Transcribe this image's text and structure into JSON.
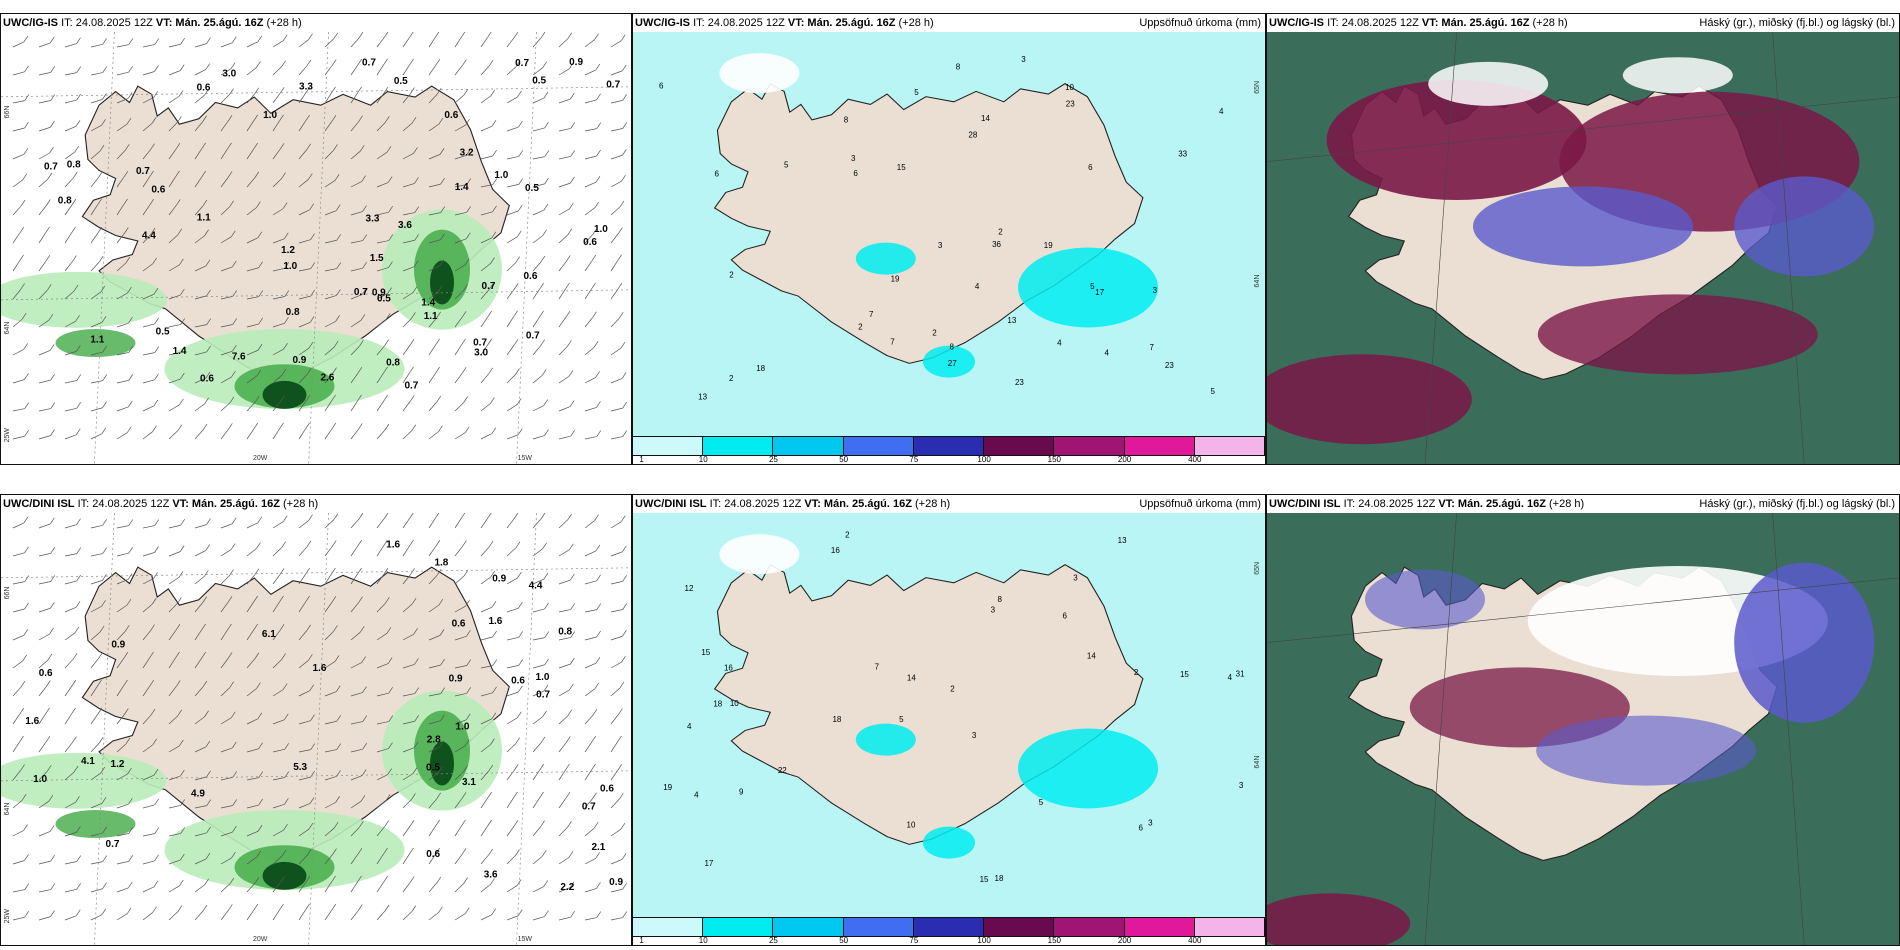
{
  "panels": [
    {
      "model": "UWC/IG-IS",
      "it": "IT: 24.08.2025 12Z",
      "vt_label": "VT:",
      "vt": "Mán. 25.ágú. 16Z",
      "lead": "(+28 h)",
      "right_title": "",
      "type": "wind",
      "values": [
        "0.7",
        "0.6",
        "0.5",
        "0.7",
        "1.0",
        "0.8",
        "0.6",
        "1.1",
        "1.0",
        "1.4",
        "1.1",
        "0.7",
        "1.2",
        "0.9",
        "1.4",
        "0.7",
        "0.8",
        "0.5",
        "0.7",
        "0.5",
        "0.7",
        "0.5",
        "0.6",
        "3.0",
        "3.6",
        "3.2",
        "4.4",
        "0.6",
        "2.6",
        "1.0",
        "1.1",
        "0.9",
        "0.6",
        "7.6",
        "3.0",
        "0.9",
        "0.7",
        "0.8",
        "1.0",
        "1.4",
        "3.3",
        "3.3",
        "0.7",
        "0.7",
        "0.5",
        "0.6",
        "0.7",
        "0.8",
        "1.5"
      ]
    },
    {
      "model": "UWC/IG-IS",
      "it": "IT: 24.08.2025 12Z",
      "vt_label": "VT:",
      "vt": "Mán. 25.ágú. 16Z",
      "lead": "(+28 h)",
      "right_title": "Uppsöfnuð úrkoma (mm)",
      "type": "precip",
      "values": [
        "2",
        "3",
        "2",
        "4",
        "5",
        "3",
        "7",
        "10",
        "4",
        "2",
        "5",
        "6",
        "7",
        "8",
        "4",
        "3",
        "5",
        "2",
        "3",
        "4",
        "6",
        "18",
        "27",
        "19",
        "17",
        "23",
        "15",
        "28",
        "33",
        "13",
        "23",
        "19",
        "14",
        "13",
        "36",
        "23",
        "8",
        "6",
        "6",
        "2",
        "5",
        "7",
        "8"
      ]
    },
    {
      "model": "UWC/IG-IS",
      "it": "IT: 24.08.2025 12Z",
      "vt_label": "VT:",
      "vt": "Mán. 25.ágú. 16Z",
      "lead": "(+28 h)",
      "right_title": "Háský (gr.), miðský (fj.bl.) og lágský (bl.)",
      "type": "cloud",
      "values": []
    },
    {
      "model": "UWC/DINI ISL",
      "it": "IT: 24.08.2025 12Z",
      "vt_label": "VT:",
      "vt": "Mán. 25.ágú. 16Z",
      "lead": "(+28 h)",
      "right_title": "",
      "type": "wind",
      "values": [
        "0.5",
        "0.6",
        "0.6",
        "0.7",
        "0.6",
        "1.6",
        "1.0",
        "1.6",
        "2.1",
        "3.6",
        "1.0",
        "2.8",
        "1.0",
        "3.1",
        "4.9",
        "2.2",
        "4.4",
        "4.1",
        "0.9",
        "6.1",
        "5.3",
        "1.6",
        "0.9",
        "1.8",
        "0.7",
        "0.7",
        "0.9",
        "0.6",
        "0.9",
        "1.2",
        "0.8",
        "1.6",
        "0.6"
      ]
    },
    {
      "model": "UWC/DINI ISL",
      "it": "IT: 24.08.2025 12Z",
      "vt_label": "VT:",
      "vt": "Mán. 25.ágú. 16Z",
      "lead": "(+28 h)",
      "right_title": "Uppsöfnuð úrkoma (mm)",
      "type": "precip",
      "values": [
        "2",
        "3",
        "4",
        "5",
        "3",
        "10",
        "12",
        "6",
        "4",
        "3",
        "2",
        "17",
        "16",
        "18",
        "15",
        "18",
        "10",
        "13",
        "14",
        "22",
        "16",
        "18",
        "31",
        "15",
        "19",
        "15",
        "14",
        "2",
        "3",
        "4",
        "6",
        "8",
        "9",
        "7",
        "5",
        "3"
      ]
    },
    {
      "model": "UWC/DINI ISL",
      "it": "IT: 24.08.2025 12Z",
      "vt_label": "VT:",
      "vt": "Mán. 25.ágú. 16Z",
      "lead": "(+28 h)",
      "right_title": "Háský (gr.), miðský (fj.bl.) og lágský (bl.)",
      "type": "cloud",
      "values": []
    }
  ],
  "colorbar": {
    "labels": [
      "1",
      "10",
      "25",
      "50",
      "75",
      "100",
      "150",
      "200",
      "400"
    ],
    "colors": [
      "#ccf9f9",
      "#00ecf0",
      "#00c8f0",
      "#3f6ff0",
      "#2a2db0",
      "#6a0a4e",
      "#a01574",
      "#e0189a",
      "#f4b4ea"
    ]
  },
  "axis_ticks": {
    "lat66": "66N",
    "lat64": "64N",
    "lon25": "25W",
    "lon20": "20W",
    "lon15": "15W",
    "lat65": "65N"
  },
  "colors": {
    "land": "#eadfd2",
    "sea_precip": "#b9f5f5",
    "green_light": "#b9ecb9",
    "green_mid": "#4caf50",
    "green_dark": "#0d4d1a",
    "cloud_high": "#3a6e5a",
    "cloud_mid": "#7a1847",
    "cloud_low": "#5a5acc"
  }
}
